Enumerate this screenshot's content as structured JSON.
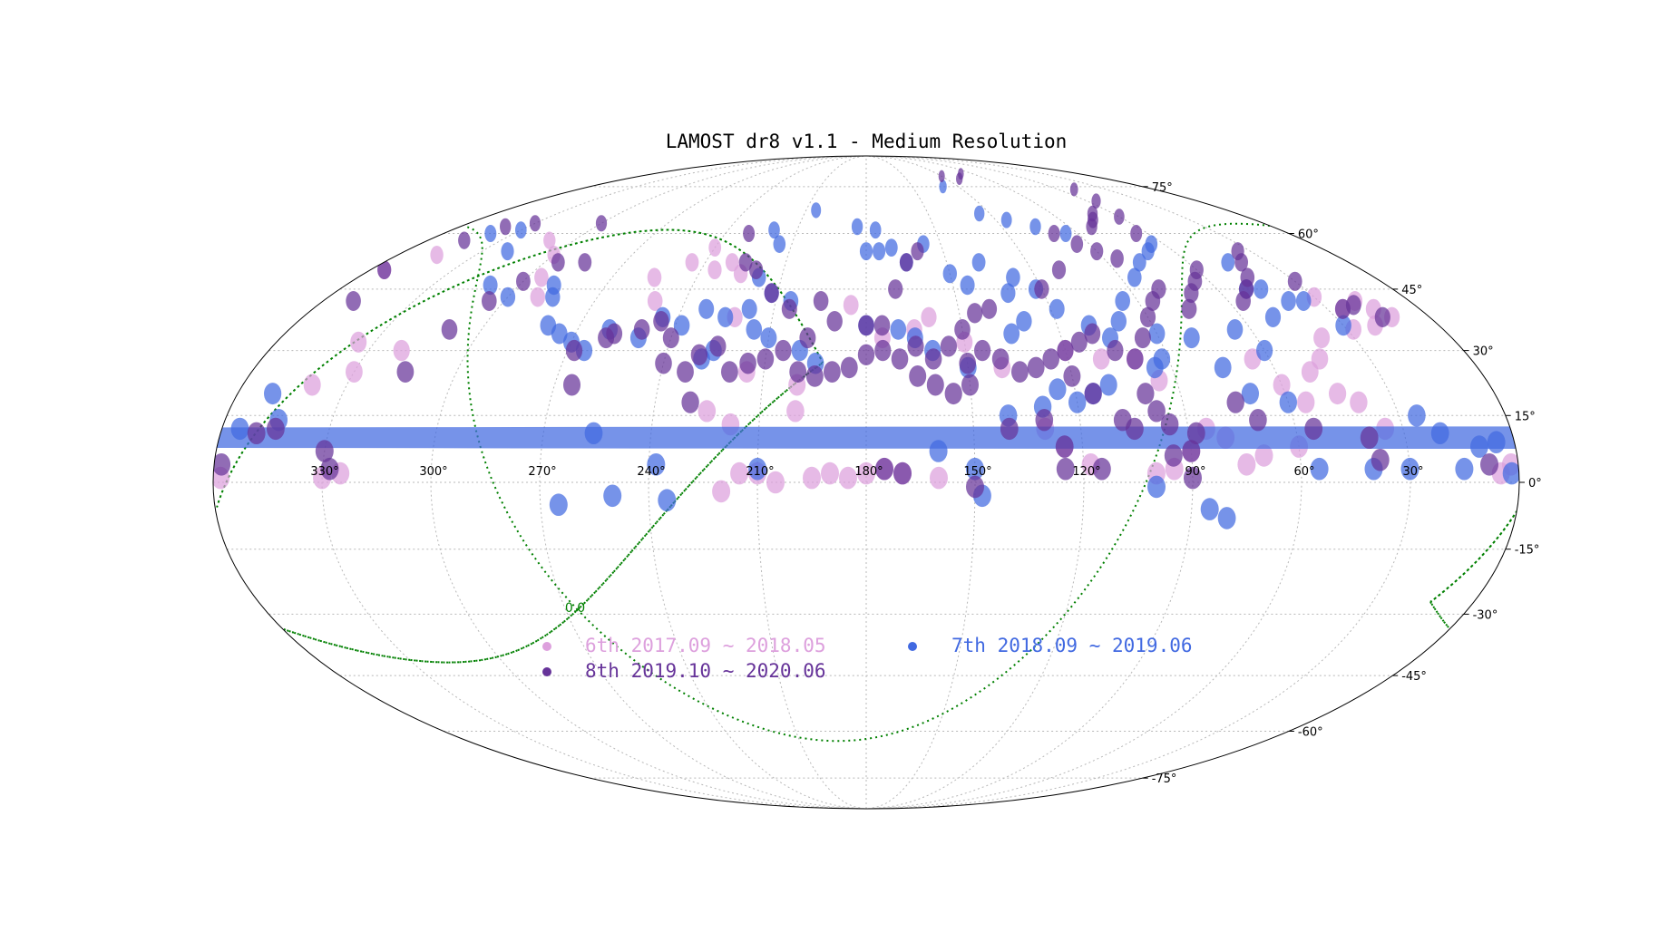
{
  "chart_data": {
    "type": "scatter",
    "projection": "mollweide (RA decreasing to the right, 180° at centre)",
    "title": "LAMOST dr8 v1.1 - Medium Resolution",
    "xlabel": "",
    "ylabel": "",
    "grid": true,
    "legend_position": "lower-center",
    "ra_tick_labels": [
      "330°",
      "300°",
      "270°",
      "240°",
      "210°",
      "180°",
      "150°",
      "120°",
      "90°",
      "60°",
      "30°"
    ],
    "ra_tick_values": [
      330,
      300,
      270,
      240,
      210,
      180,
      150,
      120,
      90,
      60,
      30
    ],
    "dec_tick_labels": [
      "75°",
      "60°",
      "45°",
      "30°",
      "15°",
      "0°",
      "-15°",
      "-30°",
      "-45°",
      "-60°",
      "-75°"
    ],
    "dec_tick_values": [
      75,
      60,
      45,
      30,
      15,
      0,
      -15,
      -30,
      -45,
      -60,
      -75
    ],
    "galactic_plane_label": "0.0",
    "series": [
      {
        "name": "6th 2017.09 ~ 2018.05",
        "color": "#DDA0DD",
        "points": [
          [
            15,
            40
          ],
          [
            18,
            42
          ],
          [
            12,
            38
          ],
          [
            20,
            36
          ],
          [
            25,
            40
          ],
          [
            30,
            43
          ],
          [
            28,
            35
          ],
          [
            35,
            12
          ],
          [
            40,
            18
          ],
          [
            45,
            20
          ],
          [
            60,
            8
          ],
          [
            75,
            4
          ],
          [
            70,
            6
          ],
          [
            80,
            10
          ],
          [
            85,
            12
          ],
          [
            90,
            7
          ],
          [
            95,
            3
          ],
          [
            100,
            2
          ],
          [
            118,
            4
          ],
          [
            125,
            8
          ],
          [
            130,
            12
          ],
          [
            160,
            1
          ],
          [
            170,
            2
          ],
          [
            175,
            3
          ],
          [
            180,
            2
          ],
          [
            185,
            1
          ],
          [
            190,
            2
          ],
          [
            195,
            1
          ],
          [
            205,
            0
          ],
          [
            210,
            2
          ],
          [
            215,
            2
          ],
          [
            220,
            -2
          ],
          [
            218,
            13
          ],
          [
            225,
            16
          ],
          [
            200,
            16
          ],
          [
            250,
            42
          ],
          [
            255,
            48
          ],
          [
            245,
            52
          ],
          [
            235,
            50
          ],
          [
            290,
            43
          ],
          [
            295,
            48
          ],
          [
            300,
            54
          ],
          [
            310,
            58
          ],
          [
            320,
            30
          ],
          [
            330,
            25
          ],
          [
            335,
            32
          ],
          [
            340,
            22
          ],
          [
            325,
            2
          ],
          [
            330,
            1
          ],
          [
            345,
            54
          ],
          [
            355,
            50
          ],
          [
            2,
            4
          ],
          [
            5,
            2
          ],
          [
            358,
            1
          ],
          [
            140,
            26
          ],
          [
            150,
            32
          ],
          [
            160,
            38
          ],
          [
            165,
            35
          ],
          [
            175,
            33
          ],
          [
            185,
            41
          ],
          [
            225,
            49
          ],
          [
            230,
            52
          ],
          [
            240,
            56
          ],
          [
            222,
            38
          ],
          [
            200,
            22
          ],
          [
            215,
            25
          ],
          [
            120,
            30
          ],
          [
            110,
            28
          ],
          [
            95,
            23
          ],
          [
            100,
            28
          ],
          [
            60,
            22
          ],
          [
            55,
            18
          ],
          [
            50,
            25
          ],
          [
            45,
            28
          ],
          [
            40,
            33
          ],
          [
            65,
            28
          ]
        ]
      },
      {
        "name": "7th 2018.09 ~ 2019.06",
        "color": "#4169E1",
        "points": [
          [
            265,
            -5
          ],
          [
            250,
            -3
          ],
          [
            238,
            4
          ],
          [
            235,
            -4
          ],
          [
            210,
            3
          ],
          [
            150,
            3
          ],
          [
            148,
            -3
          ],
          [
            160,
            7
          ],
          [
            140,
            15
          ],
          [
            130,
            17
          ],
          [
            120,
            18
          ],
          [
            115,
            20
          ],
          [
            110,
            22
          ],
          [
            125,
            21
          ],
          [
            100,
            -1
          ],
          [
            85,
            -6
          ],
          [
            80,
            -8
          ],
          [
            55,
            3
          ],
          [
            40,
            3
          ],
          [
            30,
            3
          ],
          [
            15,
            3
          ],
          [
            20,
            11
          ],
          [
            10,
            8
          ],
          [
            25,
            15
          ],
          [
            5,
            9
          ],
          [
            2,
            2
          ],
          [
            70,
            20
          ],
          [
            60,
            30
          ],
          [
            50,
            38
          ],
          [
            45,
            45
          ],
          [
            35,
            42
          ],
          [
            30,
            36
          ],
          [
            65,
            35
          ],
          [
            75,
            26
          ],
          [
            80,
            33
          ],
          [
            90,
            34
          ],
          [
            92,
            28
          ],
          [
            95,
            26
          ],
          [
            105,
            33
          ],
          [
            110,
            36
          ],
          [
            118,
            40
          ],
          [
            122,
            45
          ],
          [
            128,
            48
          ],
          [
            132,
            44
          ],
          [
            138,
            52
          ],
          [
            145,
            46
          ],
          [
            150,
            49
          ],
          [
            157,
            57
          ],
          [
            180,
            55
          ],
          [
            175,
            55
          ],
          [
            170,
            56
          ],
          [
            165,
            52
          ],
          [
            205,
            42
          ],
          [
            212,
            44
          ],
          [
            218,
            48
          ],
          [
            225,
            38
          ],
          [
            232,
            40
          ],
          [
            238,
            36
          ],
          [
            245,
            38
          ],
          [
            250,
            33
          ],
          [
            260,
            35
          ],
          [
            265,
            30
          ],
          [
            270,
            32
          ],
          [
            275,
            34
          ],
          [
            280,
            36
          ],
          [
            285,
            43
          ],
          [
            288,
            46
          ],
          [
            256,
            11
          ],
          [
            150,
            26
          ],
          [
            160,
            30
          ],
          [
            165,
            33
          ],
          [
            170,
            35
          ],
          [
            180,
            36
          ],
          [
            195,
            27
          ],
          [
            200,
            30
          ],
          [
            210,
            33
          ],
          [
            215,
            35
          ],
          [
            218,
            40
          ],
          [
            229,
            28
          ],
          [
            226,
            30
          ],
          [
            135,
            34
          ],
          [
            130,
            37
          ],
          [
            100,
            37
          ],
          [
            95,
            42
          ],
          [
            85,
            48
          ],
          [
            78,
            52
          ],
          [
            70,
            55
          ],
          [
            65,
            57
          ],
          [
            95,
            60
          ],
          [
            105,
            62
          ],
          [
            115,
            64
          ],
          [
            125,
            66
          ],
          [
            130,
            75
          ],
          [
            300,
            43
          ],
          [
            310,
            46
          ],
          [
            320,
            55
          ],
          [
            330,
            61
          ],
          [
            340,
            60
          ],
          [
            350,
            20
          ],
          [
            355,
            12
          ],
          [
            345,
            14
          ],
          [
            360,
            10
          ],
          [
            60,
            18
          ],
          [
            50,
            45
          ],
          [
            45,
            52
          ],
          [
            40,
            42
          ],
          [
            215,
            57
          ],
          [
            220,
            61
          ],
          [
            205,
            67
          ],
          [
            184,
            62
          ],
          [
            176,
            61
          ]
        ]
      },
      {
        "name": "8th 2019.10 ~ 2020.06",
        "color": "#663399",
        "points": [
          [
            330,
            7
          ],
          [
            328,
            3
          ],
          [
            345,
            12
          ],
          [
            350,
            11
          ],
          [
            358,
            4
          ],
          [
            8,
            4
          ],
          [
            38,
            5
          ],
          [
            40,
            10
          ],
          [
            55,
            12
          ],
          [
            70,
            14
          ],
          [
            75,
            18
          ],
          [
            90,
            7
          ],
          [
            95,
            6
          ],
          [
            88,
            11
          ],
          [
            95,
            13
          ],
          [
            98,
            16
          ],
          [
            105,
            12
          ],
          [
            108,
            14
          ],
          [
            115,
            20
          ],
          [
            125,
            8
          ],
          [
            125,
            3
          ],
          [
            150,
            -1
          ],
          [
            175,
            3
          ],
          [
            170,
            2
          ],
          [
            260,
            33
          ],
          [
            265,
            22
          ],
          [
            268,
            30
          ],
          [
            258,
            34
          ],
          [
            250,
            35
          ],
          [
            245,
            37
          ],
          [
            240,
            33
          ],
          [
            240,
            27
          ],
          [
            230,
            29
          ],
          [
            225,
            31
          ],
          [
            220,
            25
          ],
          [
            215,
            27
          ],
          [
            210,
            28
          ],
          [
            205,
            30
          ],
          [
            200,
            25
          ],
          [
            195,
            24
          ],
          [
            190,
            25
          ],
          [
            185,
            26
          ],
          [
            180,
            29
          ],
          [
            175,
            30
          ],
          [
            170,
            28
          ],
          [
            165,
            31
          ],
          [
            160,
            28
          ],
          [
            155,
            31
          ],
          [
            150,
            27
          ],
          [
            145,
            30
          ],
          [
            140,
            28
          ],
          [
            135,
            25
          ],
          [
            130,
            26
          ],
          [
            125,
            28
          ],
          [
            120,
            30
          ],
          [
            115,
            32
          ],
          [
            110,
            34
          ],
          [
            105,
            30
          ],
          [
            100,
            28
          ],
          [
            95,
            33
          ],
          [
            90,
            38
          ],
          [
            85,
            42
          ],
          [
            80,
            45
          ],
          [
            75,
            40
          ],
          [
            70,
            44
          ],
          [
            65,
            47
          ],
          [
            60,
            50
          ],
          [
            55,
            42
          ],
          [
            50,
            45
          ],
          [
            45,
            48
          ],
          [
            40,
            52
          ],
          [
            35,
            55
          ],
          [
            30,
            47
          ],
          [
            25,
            40
          ],
          [
            20,
            41
          ],
          [
            15,
            38
          ],
          [
            315,
            25
          ],
          [
            310,
            35
          ],
          [
            305,
            42
          ],
          [
            300,
            47
          ],
          [
            295,
            52
          ],
          [
            350,
            42
          ],
          [
            355,
            50
          ],
          [
            190,
            37
          ],
          [
            195,
            42
          ],
          [
            205,
            40
          ],
          [
            212,
            44
          ],
          [
            220,
            50
          ],
          [
            225,
            52
          ],
          [
            230,
            60
          ],
          [
            170,
            45
          ],
          [
            165,
            52
          ],
          [
            160,
            55
          ],
          [
            230,
            18
          ],
          [
            233,
            25
          ],
          [
            198,
            33
          ],
          [
            180,
            36
          ],
          [
            175,
            36
          ],
          [
            150,
            35
          ],
          [
            145,
            39
          ],
          [
            140,
            40
          ],
          [
            120,
            45
          ],
          [
            110,
            50
          ],
          [
            100,
            60
          ],
          [
            95,
            57
          ],
          [
            90,
            55
          ],
          [
            85,
            53
          ],
          [
            80,
            62
          ],
          [
            75,
            64
          ],
          [
            70,
            66
          ],
          [
            65,
            60
          ],
          [
            60,
            65
          ],
          [
            55,
            70
          ],
          [
            50,
            74
          ],
          [
            100,
            80
          ],
          [
            110,
            78
          ],
          [
            120,
            79
          ],
          [
            345,
            58
          ],
          [
            340,
            62
          ],
          [
            330,
            63
          ],
          [
            300,
            63
          ],
          [
            285,
            52
          ],
          [
            120,
            24
          ],
          [
            100,
            20
          ],
          [
            150,
            22
          ],
          [
            155,
            20
          ],
          [
            160,
            22
          ],
          [
            165,
            24
          ],
          [
            130,
            14
          ],
          [
            140,
            12
          ],
          [
            90,
            1
          ],
          [
            115,
            3
          ]
        ]
      }
    ]
  }
}
